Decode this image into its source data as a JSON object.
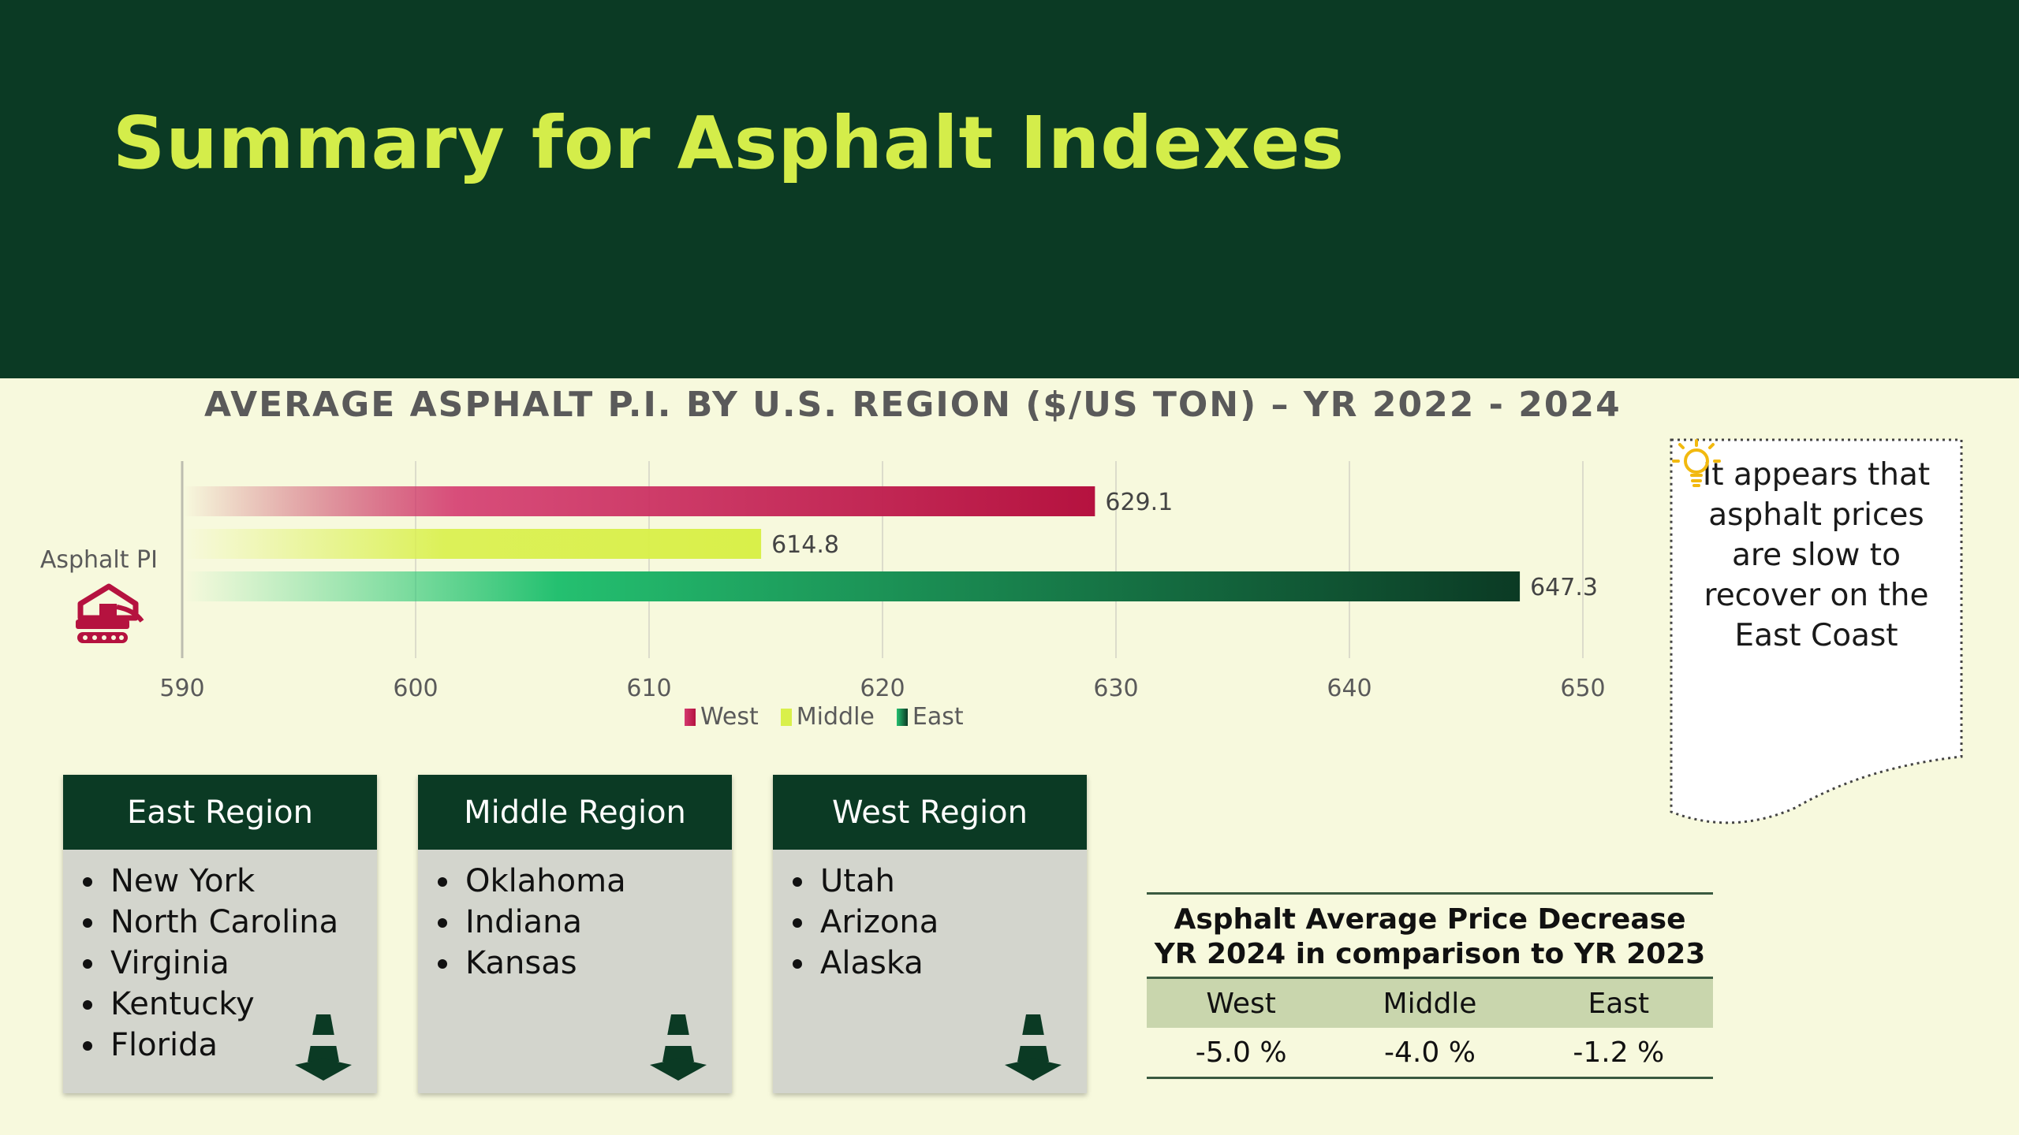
{
  "header": {
    "title": "Summary for Asphalt Indexes"
  },
  "chart_data": {
    "type": "bar",
    "orientation": "horizontal",
    "title": "AVERAGE ASPHALT P.I. BY U.S. REGION ($/US TON) – YR 2022 - 2024",
    "categories": [
      "Asphalt PI"
    ],
    "series": [
      {
        "name": "West",
        "values": [
          629.1
        ],
        "color": "#b5123f"
      },
      {
        "name": "Middle",
        "values": [
          614.8
        ],
        "color": "#d9f04a"
      },
      {
        "name": "East",
        "values": [
          647.3
        ],
        "color": "#0b3a24"
      }
    ],
    "xlim": [
      590,
      650
    ],
    "xticks": [
      "590",
      "600",
      "610",
      "620",
      "630",
      "640",
      "650"
    ],
    "grid": true,
    "legend": "bottom",
    "icon": "excavator-icon"
  },
  "note": {
    "text": "It appears that asphalt prices are slow to recover on the East Coast",
    "icon": "lightbulb-icon"
  },
  "regions": [
    {
      "title": "East Region",
      "states": [
        "New York",
        "North Carolina",
        "Virginia",
        "Kentucky",
        "Florida"
      ]
    },
    {
      "title": "Middle Region",
      "states": [
        "Oklahoma",
        "Indiana",
        "Kansas"
      ]
    },
    {
      "title": "West Region",
      "states": [
        "Utah",
        "Arizona",
        "Alaska"
      ]
    }
  ],
  "decrease_table": {
    "title_line1": "Asphalt Average Price Decrease",
    "title_line2": "YR 2024 in comparison to YR 2023",
    "headers": [
      "West",
      "Middle",
      "East"
    ],
    "values": [
      "-5.0 %",
      "-4.0 %",
      "-1.2 %"
    ]
  },
  "colors": {
    "header_bg": "#0b3a24",
    "title": "#d4ed4a",
    "page_bg": "#f7f9dd",
    "icon_red": "#b5123f",
    "cone": "#0b3a24"
  }
}
